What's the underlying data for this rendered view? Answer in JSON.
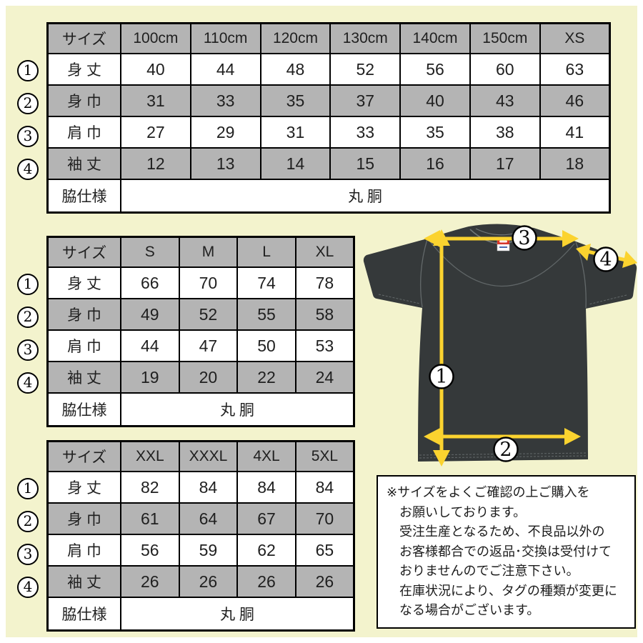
{
  "colors": {
    "background": "#f3f3cd",
    "frame": "#ffffff",
    "table-gray": "#b4b4b4",
    "table-white": "#ffffff",
    "border": "#000000",
    "shirt": "#35393a",
    "seam": "#6f7677",
    "arrow": "#fbd32f",
    "tag-red": "#d6382c",
    "tag-blue": "#2b4fa0"
  },
  "tables": [
    {
      "title": "kids-and-xs-sizes",
      "columns": [
        "サイズ",
        "100cm",
        "110cm",
        "120cm",
        "130cm",
        "140cm",
        "150cm",
        "XS"
      ],
      "rows": [
        {
          "num": "1",
          "label": "身 丈",
          "values": [
            "40",
            "44",
            "48",
            "52",
            "56",
            "60",
            "63"
          ]
        },
        {
          "num": "2",
          "label": "身 巾",
          "values": [
            "31",
            "33",
            "35",
            "37",
            "40",
            "43",
            "46"
          ]
        },
        {
          "num": "3",
          "label": "肩 巾",
          "values": [
            "27",
            "29",
            "31",
            "33",
            "35",
            "38",
            "41"
          ]
        },
        {
          "num": "4",
          "label": "袖 丈",
          "values": [
            "12",
            "13",
            "14",
            "15",
            "16",
            "17",
            "18"
          ]
        }
      ],
      "footer_label": "脇仕様",
      "footer_value": "丸 胴"
    },
    {
      "title": "adult-sizes",
      "columns": [
        "サイズ",
        "S",
        "M",
        "L",
        "XL"
      ],
      "rows": [
        {
          "num": "1",
          "label": "身 丈",
          "values": [
            "66",
            "70",
            "74",
            "78"
          ]
        },
        {
          "num": "2",
          "label": "身 巾",
          "values": [
            "49",
            "52",
            "55",
            "58"
          ]
        },
        {
          "num": "3",
          "label": "肩 巾",
          "values": [
            "44",
            "47",
            "50",
            "53"
          ]
        },
        {
          "num": "4",
          "label": "袖 丈",
          "values": [
            "19",
            "20",
            "22",
            "24"
          ]
        }
      ],
      "footer_label": "脇仕様",
      "footer_value": "丸 胴"
    },
    {
      "title": "plus-sizes",
      "columns": [
        "サイズ",
        "XXL",
        "XXXL",
        "4XL",
        "5XL"
      ],
      "rows": [
        {
          "num": "1",
          "label": "身 丈",
          "values": [
            "82",
            "84",
            "84",
            "84"
          ]
        },
        {
          "num": "2",
          "label": "身 巾",
          "values": [
            "61",
            "64",
            "67",
            "70"
          ]
        },
        {
          "num": "3",
          "label": "肩 巾",
          "values": [
            "56",
            "59",
            "62",
            "65"
          ]
        },
        {
          "num": "4",
          "label": "袖 丈",
          "values": [
            "26",
            "26",
            "26",
            "26"
          ]
        }
      ],
      "footer_label": "脇仕様",
      "footer_value": "丸 胴"
    }
  ],
  "diagram": {
    "labels": [
      "1",
      "2",
      "3",
      "4"
    ]
  },
  "note": {
    "lines": [
      "※サイズをよくご確認の上ご購入を",
      "お願いしております。",
      "受注生産となるため、不良品以外の",
      "お客様都合での返品･交換は受付けて",
      "おりませんのでご注意下さい。",
      "在庫状況により、タグの種類が変更に",
      "なる場合がございます。"
    ]
  }
}
